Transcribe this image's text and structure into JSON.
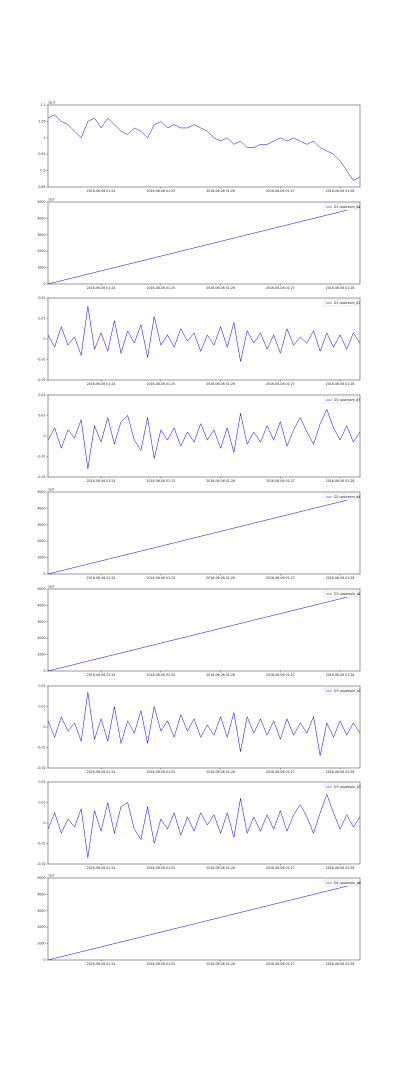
{
  "chart_data": [
    {
      "type": "line",
      "title": "1e-3",
      "xlim": [
        0,
        47
      ],
      "ylim": [
        0.85,
        1.1
      ],
      "yticks": [
        0.85,
        0.9,
        0.95,
        1,
        1.05,
        1.1
      ],
      "xticks": [
        {
          "value": 8,
          "label": "2016-06-06 01:24"
        },
        {
          "value": 17,
          "label": "2016-06-06 01:25"
        },
        {
          "value": 26,
          "label": "2016-06-06 01:26"
        },
        {
          "value": 35,
          "label": "2016-06-06 01:27"
        },
        {
          "value": 44,
          "label": "2016-06-06 01:28"
        }
      ],
      "series": [
        {
          "color": "#0000ff",
          "values": [
            1.06,
            1.07,
            1.05,
            1.04,
            1.02,
            1.0,
            1.05,
            1.06,
            1.03,
            1.06,
            1.04,
            1.02,
            1.01,
            1.03,
            1.02,
            1.0,
            1.04,
            1.05,
            1.03,
            1.04,
            1.03,
            1.03,
            1.04,
            1.03,
            1.02,
            1.0,
            0.99,
            1.0,
            0.98,
            0.99,
            0.97,
            0.97,
            0.98,
            0.98,
            0.99,
            1.0,
            0.99,
            1.0,
            0.99,
            0.98,
            0.99,
            0.97,
            0.96,
            0.95,
            0.93,
            0.9,
            0.87,
            0.88
          ]
        }
      ]
    },
    {
      "type": "line",
      "title": "1e3",
      "xlim": [
        0,
        47
      ],
      "ylim": [
        0,
        5000
      ],
      "yticks": [
        0,
        1000,
        2000,
        3000,
        4000,
        5000
      ],
      "xticks": [
        {
          "value": 8,
          "label": "2016-06-06 01:24"
        },
        {
          "value": 17,
          "label": "2016-06-06 01:25"
        },
        {
          "value": 26,
          "label": "2016-06-06 01:26"
        },
        {
          "value": 35,
          "label": "2016-06-06 01:27"
        },
        {
          "value": 44,
          "label": "2016-06-06 01:28"
        }
      ],
      "series": [
        {
          "name": "D1 upstream_d1",
          "color": "#0000ff",
          "values": [
            0,
            100,
            200,
            300,
            400,
            500,
            600,
            700,
            800,
            900,
            1000,
            1100,
            1200,
            1300,
            1400,
            1500,
            1600,
            1700,
            1800,
            1900,
            2000,
            2100,
            2200,
            2300,
            2400,
            2500,
            2600,
            2700,
            2800,
            2900,
            3000,
            3100,
            3200,
            3300,
            3400,
            3500,
            3600,
            3700,
            3800,
            3900,
            4000,
            4100,
            4200,
            4300,
            4400,
            4500,
            4600,
            4700
          ]
        }
      ]
    },
    {
      "type": "line",
      "xlim": [
        0,
        47
      ],
      "ylim": [
        -0.02,
        0.02
      ],
      "yticks": [
        -0.02,
        -0.01,
        0,
        0.01,
        0.02
      ],
      "xticks": [
        {
          "value": 8,
          "label": "2016-06-06 01:24"
        },
        {
          "value": 17,
          "label": "2016-06-06 01:25"
        },
        {
          "value": 26,
          "label": "2016-06-06 01:26"
        },
        {
          "value": 35,
          "label": "2016-06-06 01:27"
        },
        {
          "value": 44,
          "label": "2016-06-06 01:28"
        }
      ],
      "series": [
        {
          "name": "D1 upstream_d2",
          "color": "#0000ff",
          "values": [
            0.002,
            -0.004,
            0.006,
            -0.003,
            0.001,
            -0.008,
            0.016,
            -0.005,
            0.003,
            -0.006,
            0.009,
            -0.007,
            0.004,
            -0.002,
            0.007,
            -0.009,
            0.011,
            -0.003,
            0.002,
            -0.004,
            0.005,
            -0.001,
            0.003,
            -0.006,
            0.002,
            -0.003,
            0.006,
            -0.004,
            0.008,
            -0.011,
            0.004,
            -0.002,
            0.003,
            -0.005,
            0.002,
            -0.007,
            0.005,
            -0.003,
            0.001,
            -0.002,
            0.004,
            -0.006,
            0.003,
            -0.004,
            0.002,
            -0.005,
            0.003,
            -0.002
          ]
        }
      ]
    },
    {
      "type": "line",
      "xlim": [
        0,
        47
      ],
      "ylim": [
        -0.02,
        0.02
      ],
      "yticks": [
        -0.02,
        -0.01,
        0,
        0.01,
        0.02
      ],
      "xticks": [
        {
          "value": 8,
          "label": "2016-06-06 01:24"
        },
        {
          "value": 17,
          "label": "2016-06-06 01:25"
        },
        {
          "value": 26,
          "label": "2016-06-06 01:26"
        },
        {
          "value": 35,
          "label": "2016-06-06 01:27"
        },
        {
          "value": 44,
          "label": "2016-06-06 01:28"
        }
      ],
      "series": [
        {
          "name": "D2 upstream_d3",
          "color": "#0000ff",
          "values": [
            -0.002,
            0.004,
            -0.006,
            0.003,
            -0.001,
            0.008,
            -0.016,
            0.005,
            -0.003,
            0.009,
            -0.004,
            0.007,
            0.01,
            -0.002,
            -0.007,
            0.009,
            -0.011,
            0.003,
            -0.002,
            0.004,
            -0.005,
            0.002,
            -0.003,
            0.006,
            -0.002,
            0.003,
            -0.006,
            0.004,
            -0.008,
            0.011,
            -0.004,
            0.002,
            -0.003,
            0.005,
            -0.002,
            0.007,
            -0.005,
            0.003,
            0.009,
            0.002,
            -0.004,
            0.006,
            0.013,
            0.004,
            -0.002,
            0.005,
            -0.003,
            0.002
          ]
        }
      ]
    },
    {
      "type": "line",
      "title": "1e3",
      "xlim": [
        0,
        47
      ],
      "ylim": [
        0,
        5000
      ],
      "yticks": [
        0,
        1000,
        2000,
        3000,
        4000,
        5000
      ],
      "xticks": [
        {
          "value": 8,
          "label": "2016-06-06 01:24"
        },
        {
          "value": 17,
          "label": "2016-06-06 01:25"
        },
        {
          "value": 26,
          "label": "2016-06-06 01:26"
        },
        {
          "value": 35,
          "label": "2016-06-06 01:27"
        },
        {
          "value": 44,
          "label": "2016-06-06 01:28"
        }
      ],
      "series": [
        {
          "name": "D2 upstream_d4",
          "color": "#0000ff",
          "values": [
            0,
            100,
            200,
            300,
            400,
            500,
            600,
            700,
            800,
            900,
            1000,
            1100,
            1200,
            1300,
            1400,
            1500,
            1600,
            1700,
            1800,
            1900,
            2000,
            2100,
            2200,
            2300,
            2400,
            2500,
            2600,
            2700,
            2800,
            2900,
            3000,
            3100,
            3200,
            3300,
            3400,
            3500,
            3600,
            3700,
            3800,
            3900,
            4000,
            4100,
            4200,
            4300,
            4400,
            4500,
            4600,
            4700
          ]
        }
      ]
    },
    {
      "type": "line",
      "title": "1e3",
      "xlim": [
        0,
        47
      ],
      "ylim": [
        0,
        5000
      ],
      "yticks": [
        0,
        1000,
        2000,
        3000,
        4000,
        5000
      ],
      "xticks": [
        {
          "value": 8,
          "label": "2016-06-06 01:24"
        },
        {
          "value": 17,
          "label": "2016-06-06 01:25"
        },
        {
          "value": 26,
          "label": "2016-06-06 01:26"
        },
        {
          "value": 35,
          "label": "2016-06-06 01:27"
        },
        {
          "value": 44,
          "label": "2016-06-06 01:28"
        }
      ],
      "series": [
        {
          "name": "D3 upsample_d1",
          "color": "#0000ff",
          "values": [
            0,
            100,
            200,
            300,
            400,
            500,
            600,
            700,
            800,
            900,
            1000,
            1100,
            1200,
            1300,
            1400,
            1500,
            1600,
            1700,
            1800,
            1900,
            2000,
            2100,
            2200,
            2300,
            2400,
            2500,
            2600,
            2700,
            2800,
            2900,
            3000,
            3100,
            3200,
            3300,
            3400,
            3500,
            3600,
            3700,
            3800,
            3900,
            4000,
            4100,
            4200,
            4300,
            4400,
            4500,
            4600,
            4700
          ]
        }
      ]
    },
    {
      "type": "line",
      "xlim": [
        0,
        47
      ],
      "ylim": [
        -0.02,
        0.02
      ],
      "yticks": [
        -0.02,
        -0.01,
        0,
        0.01,
        0.02
      ],
      "xticks": [
        {
          "value": 8,
          "label": "2016-06-06 01:24"
        },
        {
          "value": 17,
          "label": "2016-06-06 01:25"
        },
        {
          "value": 26,
          "label": "2016-06-06 01:26"
        },
        {
          "value": 35,
          "label": "2016-06-06 01:27"
        },
        {
          "value": 44,
          "label": "2016-06-06 01:28"
        }
      ],
      "series": [
        {
          "name": "D3 upsample_d2",
          "color": "#0000ff",
          "values": [
            0.003,
            -0.005,
            0.005,
            -0.002,
            0.002,
            -0.007,
            0.017,
            -0.006,
            0.004,
            -0.007,
            0.01,
            -0.008,
            0.003,
            -0.003,
            0.008,
            -0.008,
            0.01,
            -0.002,
            0.003,
            -0.005,
            0.006,
            -0.002,
            0.004,
            -0.005,
            0.001,
            -0.004,
            0.005,
            -0.005,
            0.007,
            -0.012,
            0.005,
            -0.003,
            0.004,
            -0.004,
            0.003,
            -0.006,
            0.004,
            -0.004,
            0.002,
            -0.003,
            0.005,
            -0.014,
            0.002,
            -0.005,
            0.003,
            -0.004,
            0.002,
            -0.003
          ]
        }
      ]
    },
    {
      "type": "line",
      "xlim": [
        0,
        47
      ],
      "ylim": [
        -0.02,
        0.02
      ],
      "yticks": [
        -0.02,
        -0.01,
        0,
        0.01,
        0.02
      ],
      "xticks": [
        {
          "value": 8,
          "label": "2016-06-06 01:24"
        },
        {
          "value": 17,
          "label": "2016-06-06 01:25"
        },
        {
          "value": 26,
          "label": "2016-06-06 01:26"
        },
        {
          "value": 35,
          "label": "2016-06-06 01:27"
        },
        {
          "value": 44,
          "label": "2016-06-06 01:28"
        }
      ],
      "series": [
        {
          "name": "D3 upsample_d3",
          "color": "#0000ff",
          "values": [
            -0.003,
            0.005,
            -0.005,
            0.002,
            -0.002,
            0.007,
            -0.017,
            0.006,
            -0.004,
            0.01,
            -0.005,
            0.008,
            0.01,
            -0.003,
            -0.008,
            0.008,
            -0.01,
            0.002,
            -0.003,
            0.005,
            -0.006,
            0.003,
            -0.004,
            0.005,
            -0.001,
            0.004,
            -0.005,
            0.005,
            -0.007,
            0.012,
            -0.005,
            0.003,
            -0.004,
            0.004,
            -0.003,
            0.006,
            -0.004,
            0.004,
            0.009,
            0.003,
            -0.005,
            0.005,
            0.014,
            0.005,
            -0.003,
            0.004,
            -0.002,
            0.003
          ]
        }
      ]
    },
    {
      "type": "line",
      "title": "1e3",
      "xlim": [
        0,
        47
      ],
      "ylim": [
        0,
        5000
      ],
      "yticks": [
        0,
        1000,
        2000,
        3000,
        4000,
        5000
      ],
      "xticks": [
        {
          "value": 8,
          "label": "2016-06-06 01:24"
        },
        {
          "value": 17,
          "label": "2016-06-06 01:25"
        },
        {
          "value": 26,
          "label": "2016-06-06 01:26"
        },
        {
          "value": 35,
          "label": "2016-06-06 01:27"
        },
        {
          "value": 44,
          "label": "2016-06-06 01:28"
        }
      ],
      "series": [
        {
          "name": "D4 upsample_d4",
          "color": "#0000ff",
          "values": [
            0,
            100,
            200,
            300,
            400,
            500,
            600,
            700,
            800,
            900,
            1000,
            1100,
            1200,
            1300,
            1400,
            1500,
            1600,
            1700,
            1800,
            1900,
            2000,
            2100,
            2200,
            2300,
            2400,
            2500,
            2600,
            2700,
            2800,
            2900,
            3000,
            3100,
            3200,
            3300,
            3400,
            3500,
            3600,
            3700,
            3800,
            3900,
            4000,
            4100,
            4200,
            4300,
            4400,
            4500,
            4600,
            4700
          ]
        }
      ]
    }
  ]
}
